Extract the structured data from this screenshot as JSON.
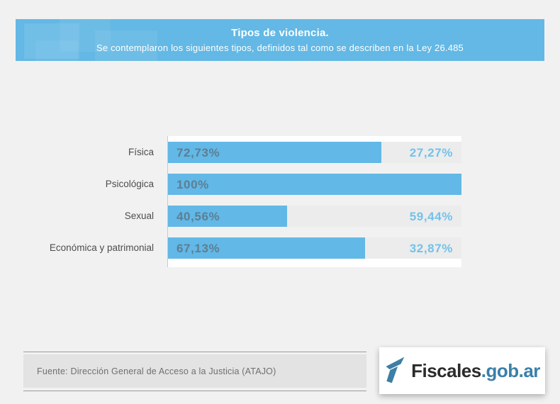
{
  "header": {
    "title": "Tipos de violencia.",
    "subtitle": "Se contemplaron los siguientes tipos, definidos tal como se describen en la Ley 26.485",
    "background": "#63b8e5",
    "text_color": "#ffffff"
  },
  "chart_data": {
    "type": "bar",
    "orientation": "horizontal",
    "title": "Tipos de violencia.",
    "categories": [
      "Física",
      "Psicológica",
      "Sexual",
      "Económica y patrimonial"
    ],
    "series": [
      {
        "name": "Porcentaje contemplado",
        "values": [
          72.73,
          100,
          40.56,
          67.13
        ]
      },
      {
        "name": "Resto",
        "values": [
          27.27,
          0,
          59.44,
          32.87
        ]
      }
    ],
    "value_labels": [
      "72,73%",
      "100%",
      "40,56%",
      "67,13%"
    ],
    "remainder_labels": [
      "27,27%",
      "",
      "59,44%",
      "32,87%"
    ],
    "xlim": [
      0,
      100
    ],
    "grid": false,
    "legend": false,
    "bar_color": "#62b8e6",
    "track_color": "#ececec",
    "value_label_color": "#5d7e93",
    "remainder_label_color": "#72c2ea"
  },
  "footer": {
    "source": "Fuente: Dirección General de Acceso a la Justicia (ATAJO)"
  },
  "logo": {
    "brand": "Fiscales",
    "suffix": ".gob.ar",
    "brand_color": "#2b2b2b",
    "suffix_color": "#3a80a9",
    "icon_color": "#3d7fa5"
  }
}
